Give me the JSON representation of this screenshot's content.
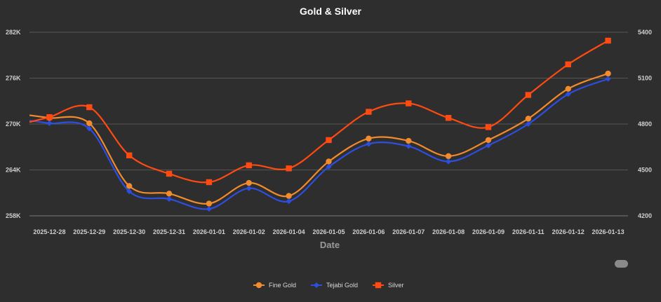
{
  "chart_data": {
    "type": "line",
    "title": "Gold & Silver",
    "xlabel": "Date",
    "ylabel_left": "",
    "ylabel_right": "",
    "categories": [
      "2025-12-28",
      "2025-12-29",
      "2025-12-30",
      "2025-12-31",
      "2026-01-01",
      "2026-01-02",
      "2026-01-04",
      "2026-01-05",
      "2026-01-06",
      "2026-01-07",
      "2026-01-08",
      "2026-01-09",
      "2026-01-11",
      "2026-01-12",
      "2026-01-13"
    ],
    "left_axis": {
      "min": 258000,
      "max": 282000,
      "ticks": [
        258000,
        264000,
        270000,
        276000,
        282000
      ],
      "tick_labels": [
        "258K",
        "264K",
        "270K",
        "276K",
        "282K"
      ]
    },
    "right_axis": {
      "min": 4200,
      "max": 5400,
      "ticks": [
        4200,
        4500,
        4800,
        5100,
        5400
      ],
      "tick_labels": [
        "4200",
        "4500",
        "4800",
        "5100",
        "5400"
      ]
    },
    "series": [
      {
        "name": "Fine Gold",
        "axis": "left",
        "marker": "circle",
        "color": "#f28a2e",
        "values": [
          270800,
          270100,
          261900,
          260900,
          259600,
          262300,
          260600,
          265100,
          268100,
          267800,
          265800,
          267900,
          270700,
          274600,
          276600
        ]
      },
      {
        "name": "Tejabi Gold",
        "axis": "left",
        "marker": "diamond",
        "color": "#2d4fe0",
        "values": [
          270100,
          269400,
          261200,
          260200,
          258900,
          261600,
          259900,
          264400,
          267400,
          267100,
          265100,
          267200,
          270000,
          273900,
          275900
        ]
      },
      {
        "name": "Silver",
        "axis": "right",
        "marker": "square",
        "color": "#ff4a12",
        "values": [
          4845,
          4910,
          4595,
          4475,
          4420,
          4530,
          4510,
          4695,
          4880,
          4935,
          4840,
          4780,
          4990,
          5190,
          5345
        ]
      }
    ],
    "grid": true,
    "legend_position": "bottom"
  }
}
